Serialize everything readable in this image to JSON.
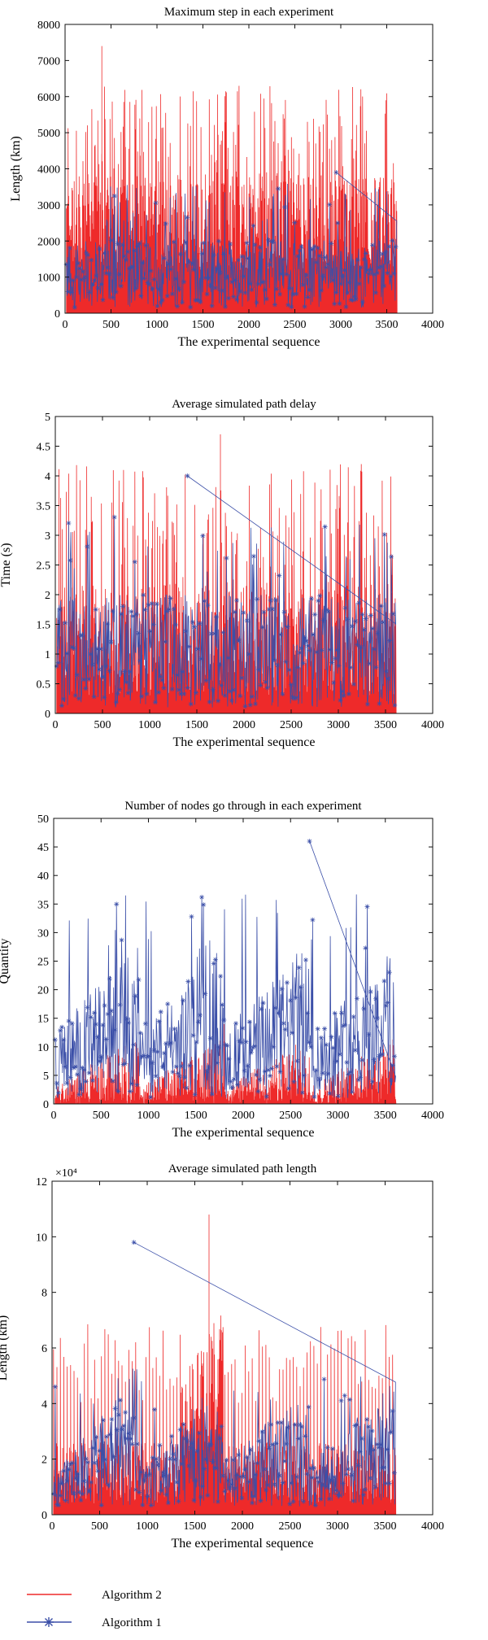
{
  "colors": {
    "algorithm2": "#ee2a2a",
    "algorithm1": "#3b4fa8",
    "axis": "#111111"
  },
  "legend": {
    "placement": "bottom-left",
    "items": [
      {
        "label": "Algorithm 2",
        "marker": "line",
        "color": "#ee2a2a"
      },
      {
        "label": "Algorithm 1",
        "marker": "line-asterisk",
        "color": "#3b4fa8"
      }
    ]
  },
  "chart_data": [
    {
      "type": "line",
      "title": "Maximum step in each experiment",
      "xlabel": "The experimental sequence",
      "ylabel": "Length (km)",
      "xlim": [
        0,
        4000
      ],
      "ylim": [
        0,
        8000
      ],
      "xticks": [
        "0",
        "500",
        "1000",
        "1500",
        "2000",
        "2500",
        "3000",
        "3500",
        "4000"
      ],
      "yticks": [
        "0",
        "1000",
        "2000",
        "3000",
        "4000",
        "5000",
        "6000",
        "7000",
        "8000"
      ],
      "grid": false,
      "series": [
        {
          "name": "Algorithm 2",
          "n_points": 3600,
          "approx_typical_range": [
            1000,
            4500
          ],
          "approx_max": 7400,
          "approx_max_at_x": 400
        },
        {
          "name": "Algorithm 1",
          "n_points": 3600,
          "approx_typical_range": [
            100,
            2500
          ],
          "approx_max": 3900,
          "approx_max_at_x": 2950
        }
      ]
    },
    {
      "type": "line",
      "title": "Average simulated path delay",
      "xlabel": "The experimental sequence",
      "ylabel": "Time (s)",
      "xlim": [
        0,
        4000
      ],
      "ylim": [
        0,
        5
      ],
      "xticks": [
        "0",
        "500",
        "1000",
        "1500",
        "2000",
        "2500",
        "3000",
        "3500",
        "4000"
      ],
      "yticks": [
        "0",
        "0.5",
        "1",
        "1.5",
        "2",
        "2.5",
        "3",
        "3.5",
        "4",
        "4.5",
        "5"
      ],
      "grid": false,
      "series": [
        {
          "name": "Algorithm 2",
          "n_points": 3600,
          "approx_typical_range": [
            0.3,
            2.6
          ],
          "approx_max": 4.7,
          "approx_max_at_x": 1750
        },
        {
          "name": "Algorithm 1",
          "n_points": 3600,
          "approx_typical_range": [
            0.1,
            2.2
          ],
          "approx_max": 4.0,
          "approx_max_at_x": 1400
        }
      ]
    },
    {
      "type": "line",
      "title": "Number of nodes go through in each experiment",
      "xlabel": "The experimental sequence",
      "ylabel": "Quantity",
      "xlim": [
        0,
        4000
      ],
      "ylim": [
        0,
        50
      ],
      "xticks": [
        "0",
        "500",
        "1000",
        "1500",
        "2000",
        "2500",
        "3000",
        "3500",
        "4000"
      ],
      "yticks": [
        "0",
        "5",
        "10",
        "15",
        "20",
        "25",
        "30",
        "35",
        "40",
        "45",
        "50"
      ],
      "grid": false,
      "series": [
        {
          "name": "Algorithm 2",
          "n_points": 3600,
          "approx_typical_range": [
            0,
            12
          ],
          "approx_max": 14
        },
        {
          "name": "Algorithm 1",
          "n_points": 3600,
          "approx_typical_range": [
            1,
            28
          ],
          "approx_max": 46,
          "approx_max_at_x": 2700,
          "envelope_x": [
            0,
            900,
            920,
            1800,
            1820,
            2700,
            2720,
            3600
          ],
          "envelope_y": [
            14,
            30,
            16,
            28,
            13,
            28,
            18,
            27
          ]
        }
      ]
    },
    {
      "type": "line",
      "title": "Average simulated path length",
      "xlabel": "The experimental sequence",
      "ylabel": "Length (km)",
      "y_multiplier": "×10⁴",
      "xlim": [
        0,
        4000
      ],
      "ylim": [
        0,
        12
      ],
      "xticks": [
        "0",
        "500",
        "1000",
        "1500",
        "2000",
        "2500",
        "3000",
        "3500",
        "4000"
      ],
      "yticks": [
        "0",
        "2",
        "4",
        "6",
        "8",
        "10",
        "12"
      ],
      "grid": false,
      "series": [
        {
          "name": "Algorithm 2",
          "n_points": 3600,
          "approx_typical_range": [
            0.5,
            6
          ],
          "approx_max": 10.8,
          "approx_max_at_x": 1650
        },
        {
          "name": "Algorithm 1",
          "n_points": 3600,
          "approx_typical_range": [
            0.2,
            5
          ],
          "approx_max": 9.8,
          "approx_max_at_x": 860,
          "ramp_x": [
            0,
            900
          ],
          "ramp_y": [
            1.5,
            5.5
          ]
        }
      ]
    }
  ]
}
